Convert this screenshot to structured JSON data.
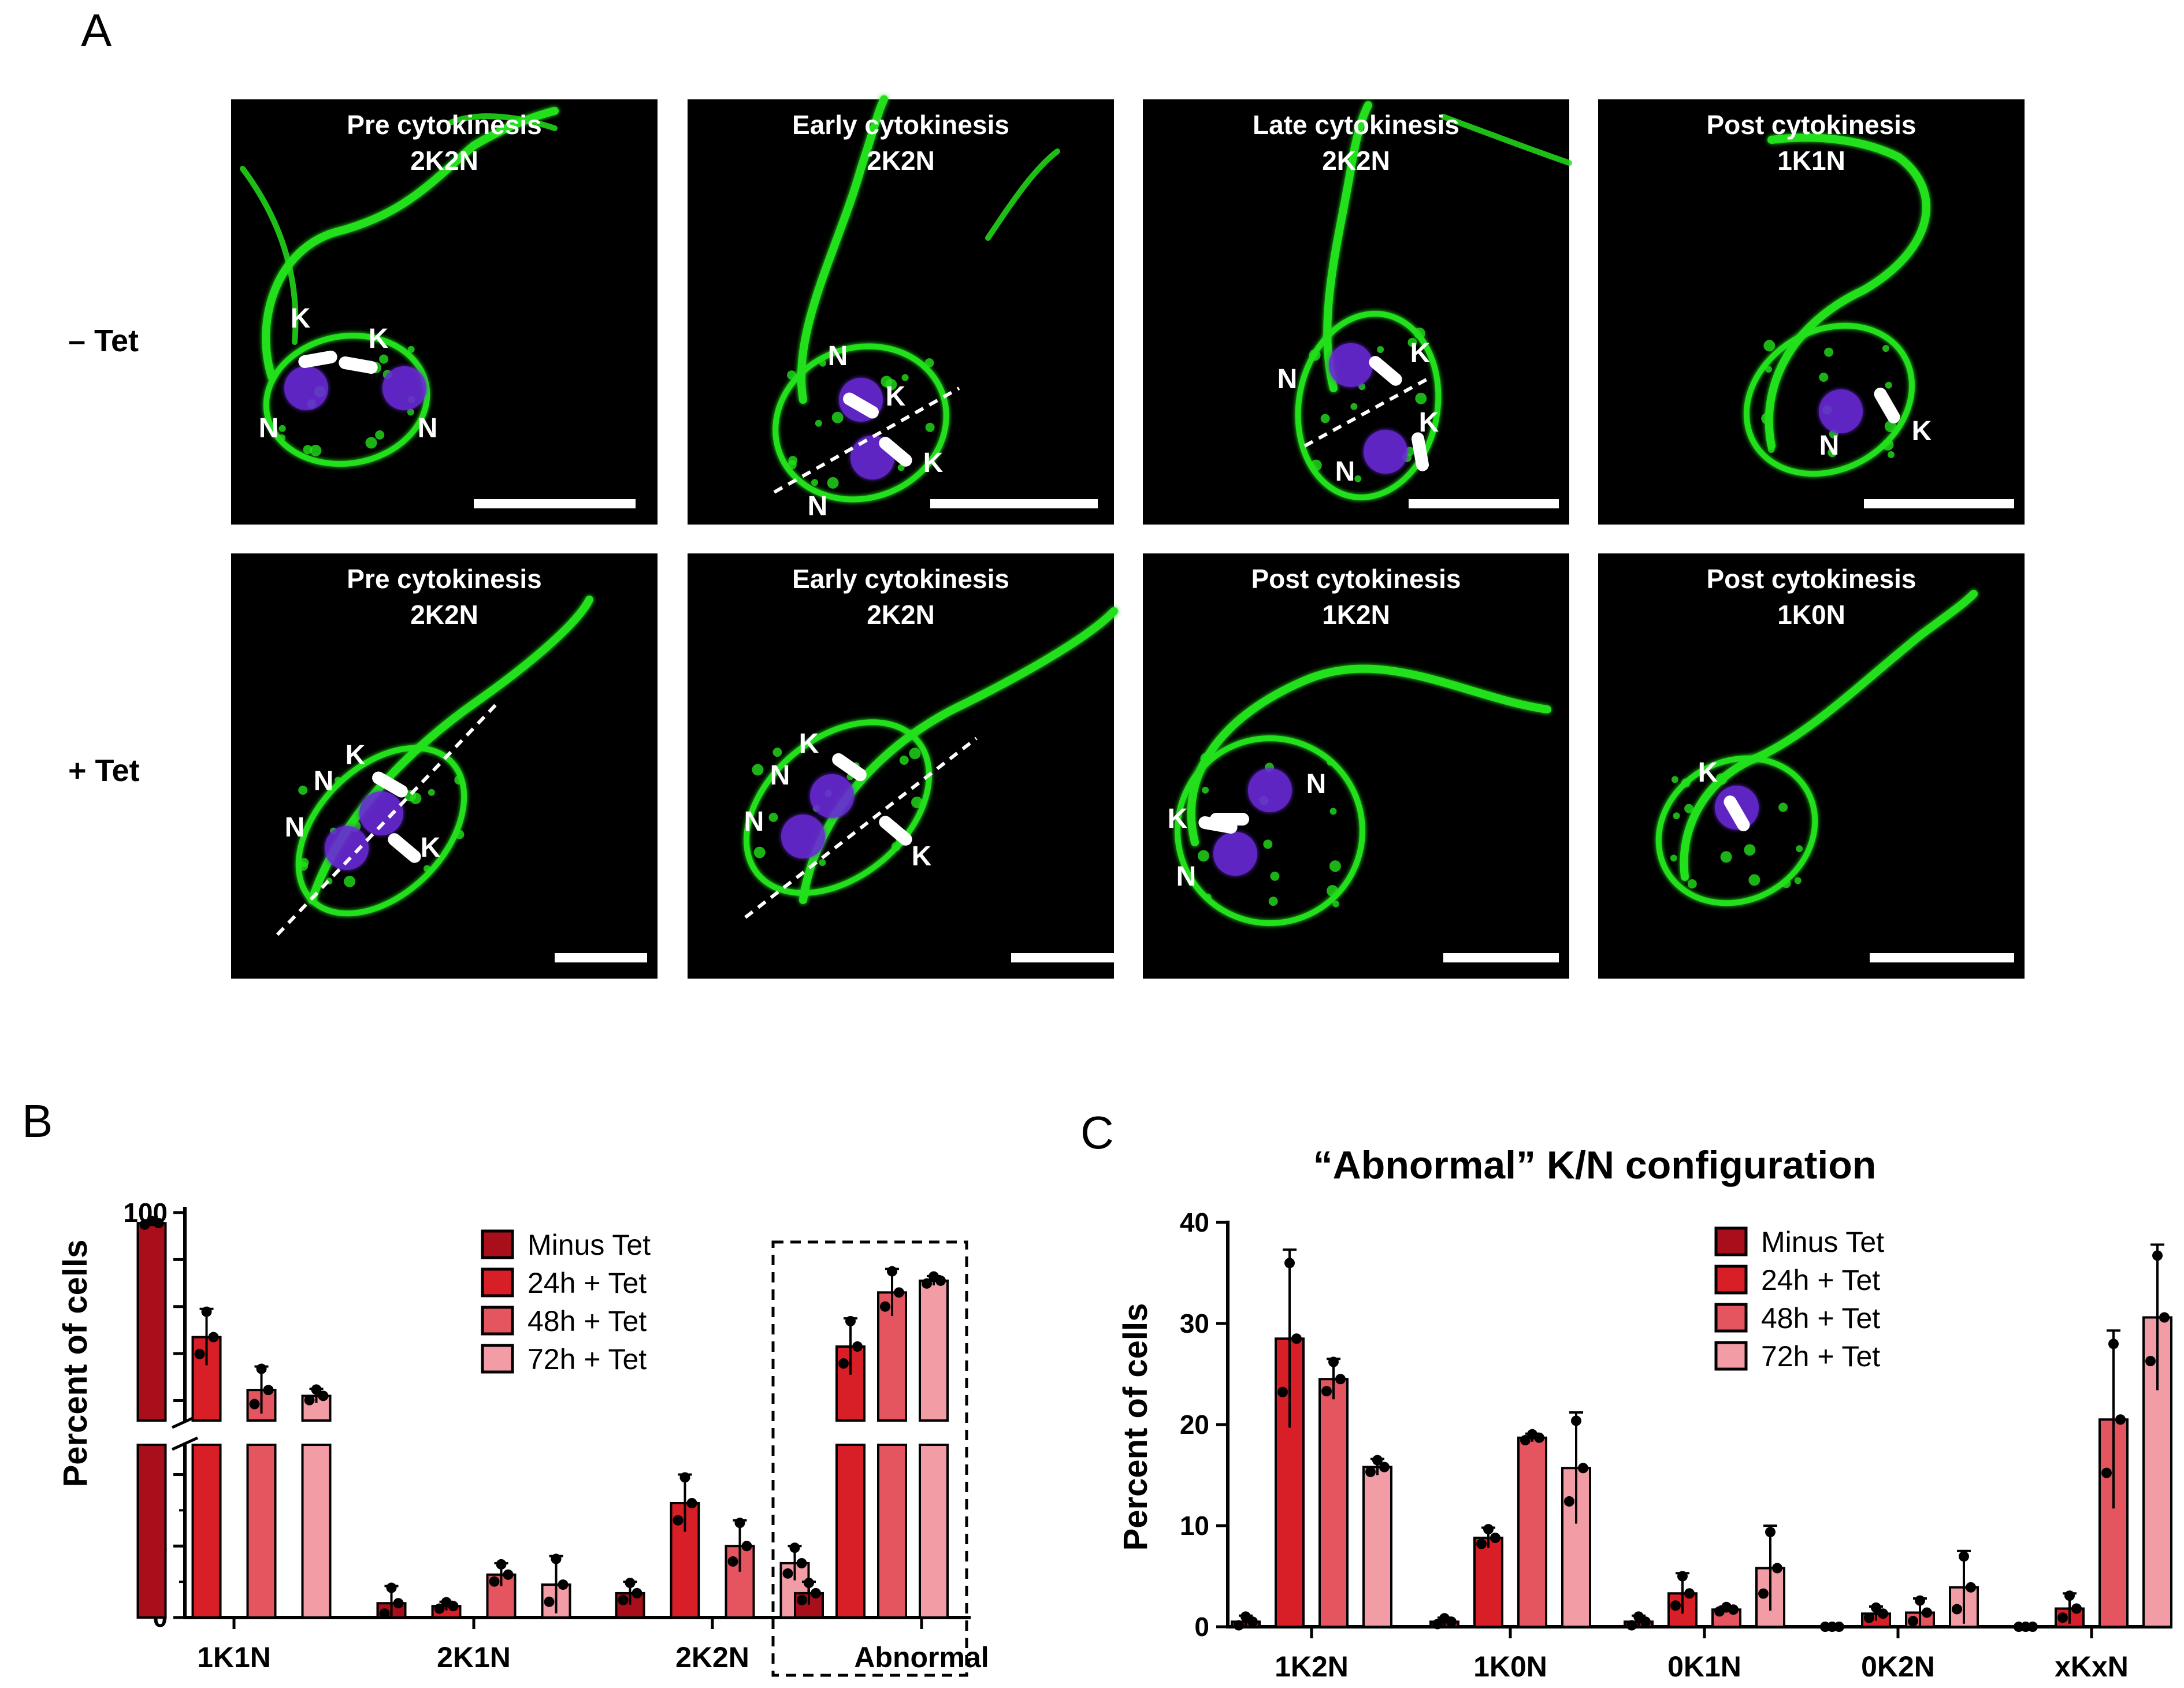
{
  "panel_letters": {
    "a": "A",
    "b": "B",
    "c": "C"
  },
  "micrographs": {
    "row_labels": [
      "– Tet",
      "+ Tet"
    ],
    "rows": [
      {
        "images": [
          {
            "title1": "Pre cytokinesis",
            "title2": "2K2N",
            "labels": [
              "K",
              "K",
              "N",
              "N"
            ]
          },
          {
            "title1": "Early cytokinesis",
            "title2": "2K2N",
            "labels": [
              "N",
              "K",
              "K",
              "N"
            ]
          },
          {
            "title1": "Late cytokinesis",
            "title2": "2K2N",
            "labels": [
              "N",
              "K",
              "K",
              "N"
            ]
          },
          {
            "title1": "Post cytokinesis",
            "title2": "1K1N",
            "labels": [
              "N",
              "K"
            ]
          }
        ]
      },
      {
        "images": [
          {
            "title1": "Pre cytokinesis",
            "title2": "2K2N",
            "labels": [
              "K",
              "N",
              "N",
              "K"
            ]
          },
          {
            "title1": "Early cytokinesis",
            "title2": "2K2N",
            "labels": [
              "K",
              "N",
              "N",
              "K"
            ]
          },
          {
            "title1": "Post cytokinesis",
            "title2": "1K2N",
            "labels": [
              "K",
              "N",
              "N"
            ]
          },
          {
            "title1": "Post cytokinesis",
            "title2": "1K0N",
            "labels": [
              "K"
            ]
          }
        ]
      }
    ]
  },
  "colors": {
    "minus_tet": "#a80f1a",
    "h24": "#d81e26",
    "h48": "#e45560",
    "h72": "#f29ca6",
    "fluor_green": "#22e01a",
    "nucleus": "#6a2bd8"
  },
  "chart_data": [
    {
      "type": "bar",
      "title": "",
      "ylabel": "Percent of cells",
      "xlabel": "",
      "categories": [
        "1K1N",
        "2K1N",
        "2K2N",
        "Abnormal"
      ],
      "highlighted_category": "Abnormal",
      "y_axis": {
        "broken": true,
        "lower_range": [
          0,
          12
        ],
        "lower_ticks": [
          "0",
          "5",
          "10"
        ],
        "upper_range": [
          12,
          100
        ],
        "upper_ticks": [
          "20",
          "40",
          "60",
          "80",
          "100"
        ]
      },
      "legend": [
        "Minus Tet",
        "24h + Tet",
        "48h + Tet",
        "72h + Tet"
      ],
      "legend_position": "top-right",
      "series": [
        {
          "name": "Minus Tet",
          "values": [
            95.5,
            1.0,
            1.7,
            1.7
          ],
          "errors": [
            1.0,
            1.2,
            0.8,
            0.8
          ]
        },
        {
          "name": "24h + Tet",
          "values": [
            47,
            0.8,
            8.0,
            43
          ],
          "errors": [
            12,
            0.3,
            2.0,
            12
          ]
        },
        {
          "name": "48h + Tet",
          "values": [
            24.5,
            3.0,
            5.0,
            66
          ],
          "errors": [
            10,
            0.8,
            1.8,
            10
          ]
        },
        {
          "name": "72h + Tet",
          "values": [
            22,
            2.3,
            3.8,
            71
          ],
          "errors": [
            3,
            2.0,
            1.2,
            2
          ]
        }
      ]
    },
    {
      "type": "bar",
      "title": "“Abnormal” K/N configuration",
      "ylabel": "Percent of cells",
      "xlabel": "",
      "categories": [
        "1K2N",
        "1K0N",
        "0K1N",
        "0K2N",
        "xKxN"
      ],
      "ylim": [
        0,
        40
      ],
      "yticks": [
        "0",
        "10",
        "20",
        "30",
        "40"
      ],
      "legend": [
        "Minus Tet",
        "24h + Tet",
        "48h + Tet",
        "72h + Tet"
      ],
      "legend_position": "top-right",
      "series": [
        {
          "name": "Minus Tet",
          "values": [
            0.5,
            0.5,
            0.5,
            0.0,
            0.0
          ],
          "errors": [
            0.6,
            0.4,
            0.6,
            0.0,
            0.0
          ]
        },
        {
          "name": "24h + Tet",
          "values": [
            28.5,
            8.8,
            3.3,
            1.3,
            1.8
          ],
          "errors": [
            8.8,
            1.0,
            2.0,
            0.7,
            1.5
          ]
        },
        {
          "name": "48h + Tet",
          "values": [
            24.5,
            18.7,
            1.7,
            1.4,
            20.5
          ],
          "errors": [
            2.0,
            0.4,
            0.3,
            1.4,
            8.8
          ]
        },
        {
          "name": "72h + Tet",
          "values": [
            15.8,
            15.7,
            5.8,
            3.9,
            30.6
          ],
          "errors": [
            0.8,
            5.5,
            4.2,
            3.6,
            7.2
          ]
        }
      ]
    }
  ]
}
